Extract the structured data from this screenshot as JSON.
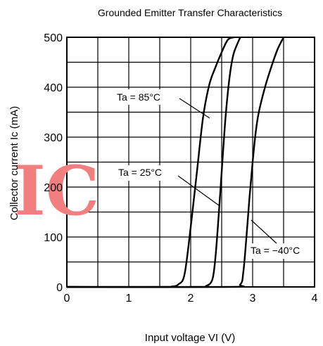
{
  "chart_data": {
    "type": "line",
    "title": "Grounded Emitter Transfer Characteristics",
    "xlabel": "Input voltage  VI (V)",
    "ylabel": "Collector current  Ic (mA)",
    "xlim": [
      0,
      4
    ],
    "ylim": [
      0,
      500
    ],
    "x_ticks": [
      "0",
      "1",
      "2",
      "3",
      "4"
    ],
    "y_ticks": [
      "0",
      "100",
      "200",
      "300",
      "400",
      "500"
    ],
    "grid": true,
    "series": [
      {
        "name": "Ta = 85°C",
        "x": [
          0,
          1.5,
          1.7,
          1.8,
          1.9,
          2.0,
          2.1,
          2.2,
          2.3,
          2.4,
          2.5,
          2.6,
          2.7
        ],
        "y": [
          0,
          0,
          1,
          5,
          25,
          120,
          230,
          340,
          405,
          440,
          470,
          495,
          500
        ]
      },
      {
        "name": "Ta = 25°C",
        "x": [
          0,
          2.1,
          2.25,
          2.35,
          2.4,
          2.45,
          2.5,
          2.55,
          2.6,
          2.65,
          2.7,
          2.8
        ],
        "y": [
          0,
          0,
          2,
          15,
          60,
          140,
          230,
          320,
          390,
          440,
          470,
          500
        ]
      },
      {
        "name": "Ta = −40°C",
        "x": [
          0,
          2.6,
          2.8,
          2.85,
          2.9,
          2.95,
          3.0,
          3.05,
          3.1,
          3.2,
          3.3,
          3.4,
          3.5
        ],
        "y": [
          0,
          0,
          5,
          30,
          100,
          180,
          250,
          310,
          350,
          400,
          440,
          475,
          500
        ]
      }
    ],
    "annotations": [
      "Ta = 85°C",
      "Ta = 25°C",
      "Ta = −40°C"
    ],
    "watermark": "IC",
    "colors": {
      "line": "#000000",
      "watermark": "#f27f7f"
    }
  }
}
